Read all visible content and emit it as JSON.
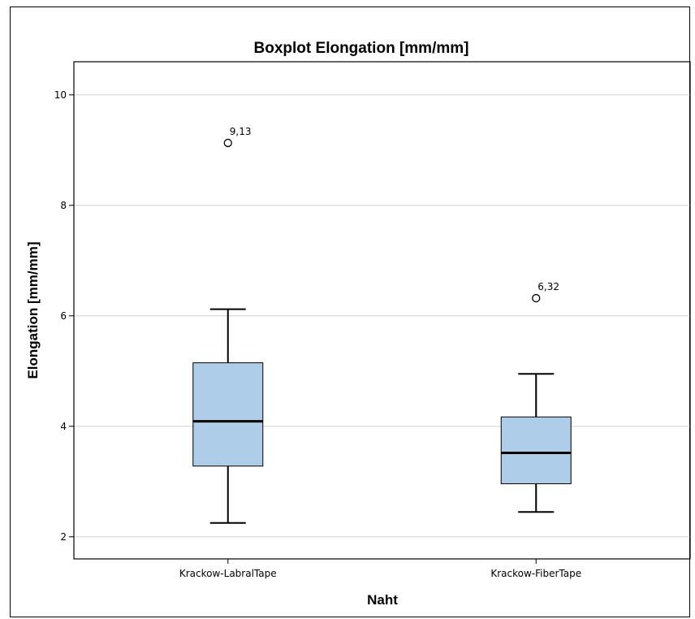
{
  "chart_data": {
    "type": "boxplot",
    "title": "Boxplot Elongation [mm/mm]",
    "xlabel": "Naht",
    "ylabel": "Elongation [mm/mm]",
    "ylim": [
      1.6,
      10.6
    ],
    "yticks": [
      "2",
      "4",
      "6",
      "8",
      "10"
    ],
    "grid": true,
    "box_color": "#aecde9",
    "groups": [
      {
        "category": "Krackow-LabralTape",
        "min": 2.25,
        "q1": 3.28,
        "median": 4.09,
        "q3": 5.15,
        "max": 6.12,
        "outliers": [
          9.13
        ],
        "outlier_labels": [
          "9,13"
        ]
      },
      {
        "category": "Krackow-FiberTape",
        "min": 2.45,
        "q1": 2.96,
        "median": 3.52,
        "q3": 4.17,
        "max": 4.95,
        "outliers": [
          6.32
        ],
        "outlier_labels": [
          "6,32"
        ]
      }
    ]
  }
}
